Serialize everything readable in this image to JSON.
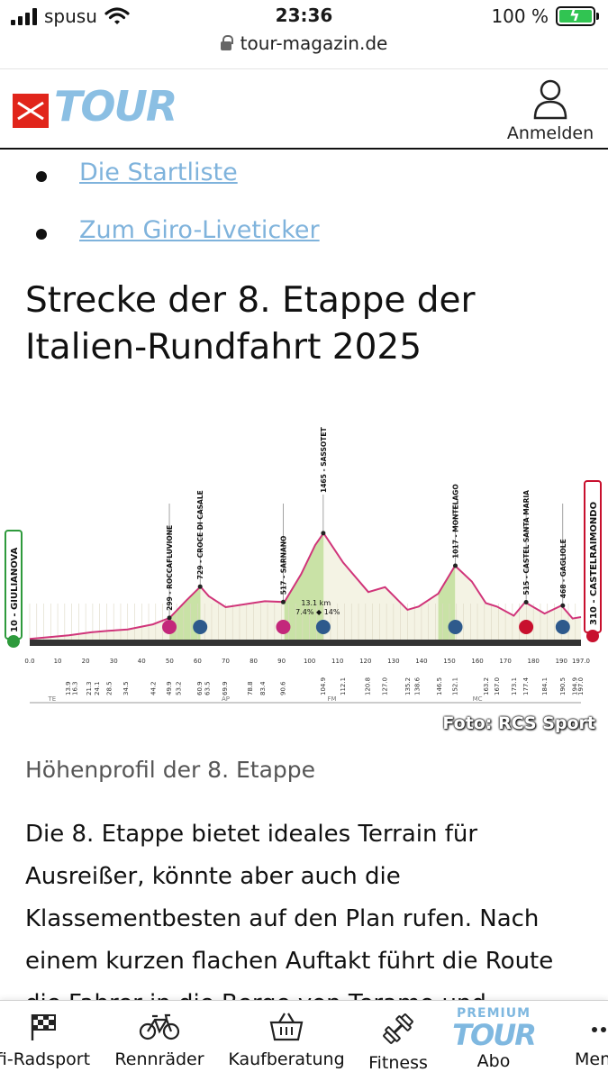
{
  "status": {
    "carrier": "spusu",
    "time": "23:36",
    "battery": "100 %",
    "url": "tour-magazin.de"
  },
  "header": {
    "logo_text": "TOUR",
    "login_label": "Anmelden"
  },
  "links": [
    {
      "label": "Die Startliste"
    },
    {
      "label": "Zum Giro-Liveticker"
    }
  ],
  "article": {
    "heading": "Strecke der 8. Etappe der Italien-Rundfahrt 2025",
    "image_credit": "Foto: RCS Sport",
    "caption": "Höhenprofil der 8. Etappe",
    "body": "Die 8. Etappe bietet ideales Terrain für Ausreißer, könnte aber auch die Klassementbesten auf den Plan rufen. Nach einem kurzen flachen Auftakt führt die Route die Fahrer in die Berge von Teramo und"
  },
  "profile": {
    "start_label": "10 - GIULIANOVA",
    "finish_label": "310 - CASTELRAIMONDO",
    "climb_info": "13.1 km",
    "climb_grade": "7.4% ◆ 14%",
    "km_ticks": [
      "0.0",
      "10",
      "20",
      "30",
      "40",
      "50",
      "60",
      "70",
      "80",
      "90",
      "100",
      "110",
      "120",
      "130",
      "140",
      "150",
      "160",
      "170",
      "180",
      "190",
      "197.0"
    ],
    "points": [
      {
        "km": 49.9,
        "label": "299 - ROCCAFLUVIONE",
        "alt": 299
      },
      {
        "km": 60.9,
        "label": "729 - CROCE DI CASALE",
        "alt": 729
      },
      {
        "km": 90.6,
        "label": "517 - SARNANO",
        "alt": 517
      },
      {
        "km": 104.9,
        "label": "1465 - SASSOTETTO",
        "alt": 1465
      },
      {
        "km": 152.1,
        "label": "1017 - MONTELAGO",
        "alt": 1017
      },
      {
        "km": 177.4,
        "label": "515 - CASTEL SANTA MARIA",
        "alt": 515
      },
      {
        "km": 190.5,
        "label": "468 - GAGLIOLE",
        "alt": 468
      }
    ],
    "bottom_kms": [
      "13.9",
      "16.3",
      "21.3",
      "24.1",
      "28.5",
      "34.5",
      "44.2",
      "49.9",
      "53.2",
      "60.9",
      "63.5",
      "69.9",
      "78.8",
      "83.4",
      "90.6",
      "104.9",
      "112.1",
      "120.8",
      "127.0",
      "135.2",
      "138.6",
      "146.5",
      "152.1",
      "163.2",
      "167.0",
      "173.1",
      "177.4",
      "184.1",
      "190.5",
      "194.9",
      "197.0"
    ],
    "regions": [
      "TE",
      "AP",
      "FM",
      "MC"
    ]
  },
  "nav": [
    {
      "label": "fi-Radsport",
      "icon": "flag-icon"
    },
    {
      "label": "Rennräder",
      "icon": "bicycle-icon"
    },
    {
      "label": "Kaufberatung",
      "icon": "basket-icon"
    },
    {
      "label": "Fitness",
      "icon": "dumbbell-icon"
    },
    {
      "label": "Abo",
      "icon": "premium-tour-logo",
      "badge": "PREMIUM",
      "logo": "TOUR"
    },
    {
      "label": "Men",
      "icon": "more-icon"
    }
  ]
}
